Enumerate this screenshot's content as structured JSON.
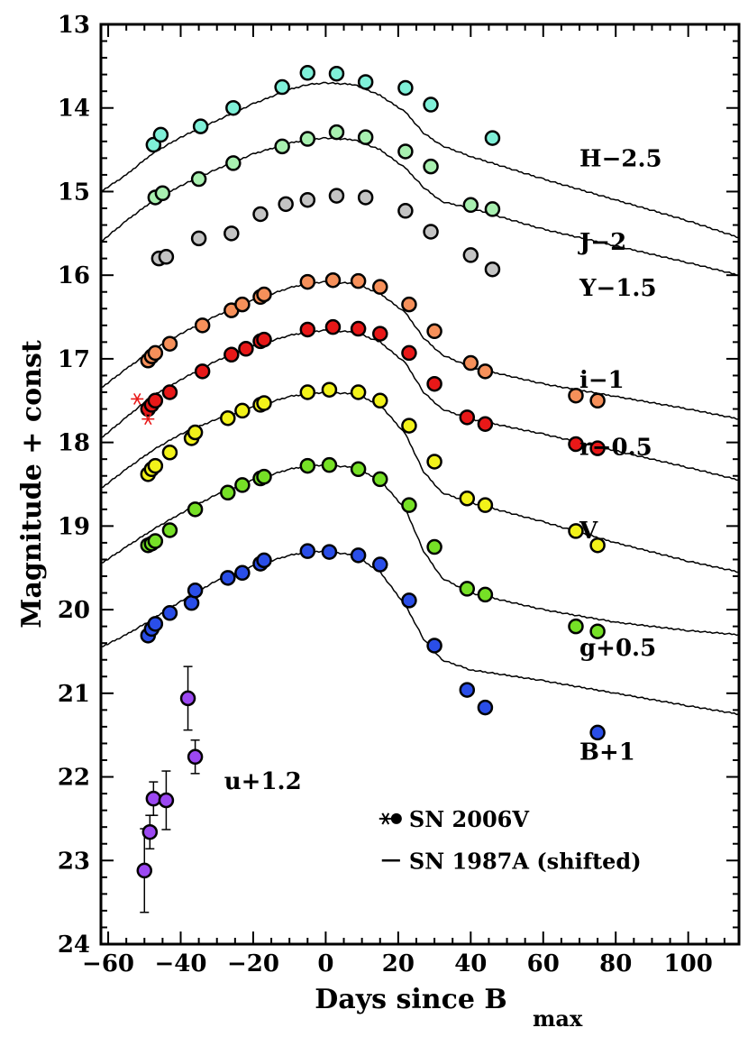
{
  "chart_data": {
    "type": "scatter",
    "xlabel_main": "Days since B",
    "xlabel_sub": "max",
    "ylabel": "Magnitude + const",
    "xlim": [
      -62,
      114
    ],
    "ylim": [
      24,
      13
    ],
    "x_ticks": [
      "−60",
      "−40",
      "−20",
      "0",
      "20",
      "40",
      "60",
      "80",
      "100"
    ],
    "x_tick_values": [
      -60,
      -40,
      -20,
      0,
      20,
      40,
      60,
      80,
      100
    ],
    "y_ticks": [
      "13",
      "14",
      "15",
      "16",
      "17",
      "18",
      "19",
      "20",
      "21",
      "22",
      "23",
      "24"
    ],
    "y_tick_values": [
      13,
      14,
      15,
      16,
      17,
      18,
      19,
      20,
      21,
      22,
      23,
      24
    ],
    "series": [
      {
        "name": "H−2.5",
        "color": "#7ff0d8",
        "label_pos": [
          70,
          14.6
        ],
        "x": [
          -47.5,
          -45.5,
          -34.5,
          -25.5,
          -12,
          -5,
          3,
          11,
          22,
          29,
          46
        ],
        "y": [
          14.44,
          14.32,
          14.22,
          14.0,
          13.75,
          13.58,
          13.59,
          13.69,
          13.76,
          13.96,
          14.36
        ],
        "template": [
          [
            -62,
            15.0
          ],
          [
            -55,
            14.8
          ],
          [
            -48,
            14.55
          ],
          [
            -40,
            14.35
          ],
          [
            -30,
            14.15
          ],
          [
            -20,
            13.95
          ],
          [
            -10,
            13.78
          ],
          [
            -5,
            13.72
          ],
          [
            0,
            13.7
          ],
          [
            8,
            13.72
          ],
          [
            15,
            13.85
          ],
          [
            22,
            14.05
          ],
          [
            27,
            14.3
          ],
          [
            32,
            14.45
          ],
          [
            40,
            14.58
          ],
          [
            60,
            14.85
          ],
          [
            80,
            15.1
          ],
          [
            100,
            15.35
          ],
          [
            114,
            15.55
          ]
        ]
      },
      {
        "name": "J−2",
        "color": "#a8f0b0",
        "label_pos": [
          70,
          15.6
        ],
        "x": [
          -47,
          -45,
          -35,
          -25.5,
          -12,
          -5,
          3,
          11,
          22,
          29,
          40,
          46
        ],
        "y": [
          15.07,
          15.02,
          14.85,
          14.66,
          14.46,
          14.37,
          14.29,
          14.35,
          14.52,
          14.7,
          15.16,
          15.21
        ],
        "template": [
          [
            -62,
            15.6
          ],
          [
            -55,
            15.35
          ],
          [
            -48,
            15.12
          ],
          [
            -40,
            14.93
          ],
          [
            -30,
            14.73
          ],
          [
            -20,
            14.55
          ],
          [
            -10,
            14.42
          ],
          [
            -5,
            14.38
          ],
          [
            0,
            14.36
          ],
          [
            8,
            14.38
          ],
          [
            15,
            14.5
          ],
          [
            22,
            14.72
          ],
          [
            27,
            14.95
          ],
          [
            32,
            15.12
          ],
          [
            40,
            15.2
          ],
          [
            60,
            15.45
          ],
          [
            80,
            15.65
          ],
          [
            100,
            15.85
          ],
          [
            114,
            16.0
          ]
        ]
      },
      {
        "name": "Y−1.5",
        "color": "#c4c4c4",
        "label_pos": [
          70,
          16.15
        ],
        "x": [
          -46,
          -44,
          -35,
          -26,
          -18,
          -11,
          -5,
          3,
          11,
          22,
          29,
          40,
          46
        ],
        "y": [
          15.8,
          15.78,
          15.56,
          15.5,
          15.27,
          15.15,
          15.1,
          15.05,
          15.07,
          15.23,
          15.48,
          15.76,
          15.93
        ],
        "template": []
      },
      {
        "name": "i−1",
        "color": "#f6905a",
        "label_pos": [
          70,
          17.25
        ],
        "x": [
          -49,
          -48,
          -47,
          -43,
          -34,
          -26,
          -23,
          -18,
          -17,
          -5,
          2,
          9,
          15,
          23,
          30,
          40,
          44,
          69,
          75
        ],
        "y": [
          17.02,
          16.97,
          16.93,
          16.82,
          16.6,
          16.42,
          16.35,
          16.26,
          16.23,
          16.08,
          16.06,
          16.07,
          16.14,
          16.35,
          16.67,
          17.05,
          17.15,
          17.44,
          17.5
        ],
        "template": [
          [
            -62,
            17.35
          ],
          [
            -55,
            17.12
          ],
          [
            -48,
            16.9
          ],
          [
            -40,
            16.7
          ],
          [
            -30,
            16.48
          ],
          [
            -20,
            16.3
          ],
          [
            -10,
            16.15
          ],
          [
            -5,
            16.1
          ],
          [
            0,
            16.08
          ],
          [
            8,
            16.1
          ],
          [
            15,
            16.22
          ],
          [
            22,
            16.45
          ],
          [
            27,
            16.75
          ],
          [
            32,
            16.95
          ],
          [
            40,
            17.1
          ],
          [
            60,
            17.3
          ],
          [
            80,
            17.45
          ],
          [
            100,
            17.6
          ],
          [
            114,
            17.72
          ]
        ]
      },
      {
        "name": "r−0.5",
        "color": "#e81818",
        "label_pos": [
          70,
          18.05
        ],
        "x": [
          -49,
          -48,
          -47,
          -43,
          -34,
          -26,
          -22,
          -18,
          -17,
          -5,
          2,
          9,
          15,
          23,
          30,
          39,
          44,
          69,
          75
        ],
        "y": [
          17.6,
          17.55,
          17.5,
          17.4,
          17.15,
          16.95,
          16.88,
          16.79,
          16.77,
          16.65,
          16.62,
          16.64,
          16.7,
          16.93,
          17.3,
          17.7,
          17.78,
          18.02,
          18.07
        ],
        "template": [
          [
            -62,
            17.95
          ],
          [
            -55,
            17.7
          ],
          [
            -48,
            17.45
          ],
          [
            -40,
            17.25
          ],
          [
            -30,
            17.02
          ],
          [
            -20,
            16.85
          ],
          [
            -10,
            16.72
          ],
          [
            -5,
            16.68
          ],
          [
            0,
            16.66
          ],
          [
            8,
            16.68
          ],
          [
            15,
            16.8
          ],
          [
            22,
            17.05
          ],
          [
            27,
            17.4
          ],
          [
            32,
            17.6
          ],
          [
            40,
            17.72
          ],
          [
            60,
            17.9
          ],
          [
            80,
            18.1
          ],
          [
            100,
            18.3
          ],
          [
            114,
            18.45
          ]
        ]
      },
      {
        "name": "V",
        "color": "#f2f21a",
        "label_pos": [
          70,
          19.05
        ],
        "x": [
          -49,
          -48,
          -47,
          -43,
          -37,
          -36,
          -27,
          -23,
          -18,
          -17,
          -5,
          1,
          9,
          15,
          23,
          30,
          39,
          44,
          69,
          75
        ],
        "y": [
          18.38,
          18.32,
          18.28,
          18.12,
          17.95,
          17.88,
          17.71,
          17.62,
          17.55,
          17.53,
          17.4,
          17.37,
          17.4,
          17.5,
          17.8,
          18.23,
          18.67,
          18.75,
          19.06,
          19.23
        ],
        "template": [
          [
            -62,
            18.55
          ],
          [
            -55,
            18.32
          ],
          [
            -48,
            18.1
          ],
          [
            -40,
            17.9
          ],
          [
            -30,
            17.72
          ],
          [
            -20,
            17.58
          ],
          [
            -10,
            17.45
          ],
          [
            -5,
            17.42
          ],
          [
            0,
            17.4
          ],
          [
            8,
            17.42
          ],
          [
            15,
            17.55
          ],
          [
            22,
            17.9
          ],
          [
            27,
            18.35
          ],
          [
            32,
            18.6
          ],
          [
            40,
            18.72
          ],
          [
            60,
            18.95
          ],
          [
            80,
            19.2
          ],
          [
            100,
            19.42
          ],
          [
            114,
            19.55
          ]
        ]
      },
      {
        "name": "g+0.5",
        "color": "#76e026",
        "label_pos": [
          70,
          20.45
        ],
        "x": [
          -49,
          -48,
          -47,
          -43,
          -36,
          -27,
          -23,
          -18,
          -17,
          -5,
          1,
          9,
          15,
          23,
          30,
          39,
          44,
          69,
          75
        ],
        "y": [
          19.23,
          19.21,
          19.18,
          19.05,
          18.8,
          18.6,
          18.51,
          18.43,
          18.41,
          18.28,
          18.27,
          18.32,
          18.44,
          18.75,
          19.25,
          19.75,
          19.82,
          20.2,
          20.26
        ],
        "template": [
          [
            -62,
            19.45
          ],
          [
            -55,
            19.25
          ],
          [
            -48,
            19.05
          ],
          [
            -40,
            18.85
          ],
          [
            -30,
            18.62
          ],
          [
            -20,
            18.45
          ],
          [
            -10,
            18.32
          ],
          [
            -5,
            18.28
          ],
          [
            0,
            18.27
          ],
          [
            8,
            18.3
          ],
          [
            15,
            18.45
          ],
          [
            22,
            18.8
          ],
          [
            27,
            19.3
          ],
          [
            32,
            19.62
          ],
          [
            40,
            19.8
          ],
          [
            60,
            20.0
          ],
          [
            80,
            20.15
          ],
          [
            100,
            20.25
          ],
          [
            114,
            20.3
          ]
        ]
      },
      {
        "name": "B+1",
        "color": "#2a4ee8",
        "label_pos": [
          70,
          21.7
        ],
        "x": [
          -49,
          -48,
          -47,
          -43,
          -37,
          -36,
          -27,
          -23,
          -18,
          -17,
          -5,
          1,
          9,
          15,
          23,
          30,
          39,
          44,
          75
        ],
        "y": [
          20.31,
          20.23,
          20.17,
          20.04,
          19.92,
          19.77,
          19.62,
          19.56,
          19.45,
          19.41,
          19.3,
          19.31,
          19.35,
          19.46,
          19.89,
          20.43,
          20.96,
          21.17,
          21.47
        ],
        "template": [
          [
            -62,
            20.45
          ],
          [
            -55,
            20.3
          ],
          [
            -48,
            20.12
          ],
          [
            -40,
            19.9
          ],
          [
            -30,
            19.65
          ],
          [
            -20,
            19.48
          ],
          [
            -10,
            19.35
          ],
          [
            -5,
            19.31
          ],
          [
            0,
            19.3
          ],
          [
            8,
            19.35
          ],
          [
            15,
            19.55
          ],
          [
            22,
            19.95
          ],
          [
            27,
            20.35
          ],
          [
            32,
            20.6
          ],
          [
            40,
            20.72
          ],
          [
            60,
            20.85
          ],
          [
            80,
            21.0
          ],
          [
            100,
            21.15
          ],
          [
            114,
            21.25
          ]
        ]
      },
      {
        "name": "u+1.2",
        "color": "#9c48f2",
        "label_pos": [
          -28,
          22.05
        ],
        "x": [
          -50,
          -48.5,
          -47.5,
          -44,
          -38,
          -36
        ],
        "y": [
          23.12,
          22.66,
          22.26,
          22.28,
          21.06,
          21.76
        ],
        "yerr": [
          0.5,
          0.2,
          0.2,
          0.35,
          0.38,
          0.2
        ],
        "template": []
      }
    ],
    "stars": {
      "color": "#e81818",
      "x": [
        -52,
        -49
      ],
      "y": [
        17.48,
        17.72
      ]
    },
    "legend": {
      "entries": [
        "SN 2006V",
        "SN 1987A (shifted)"
      ],
      "placement": "bottom-right"
    }
  }
}
